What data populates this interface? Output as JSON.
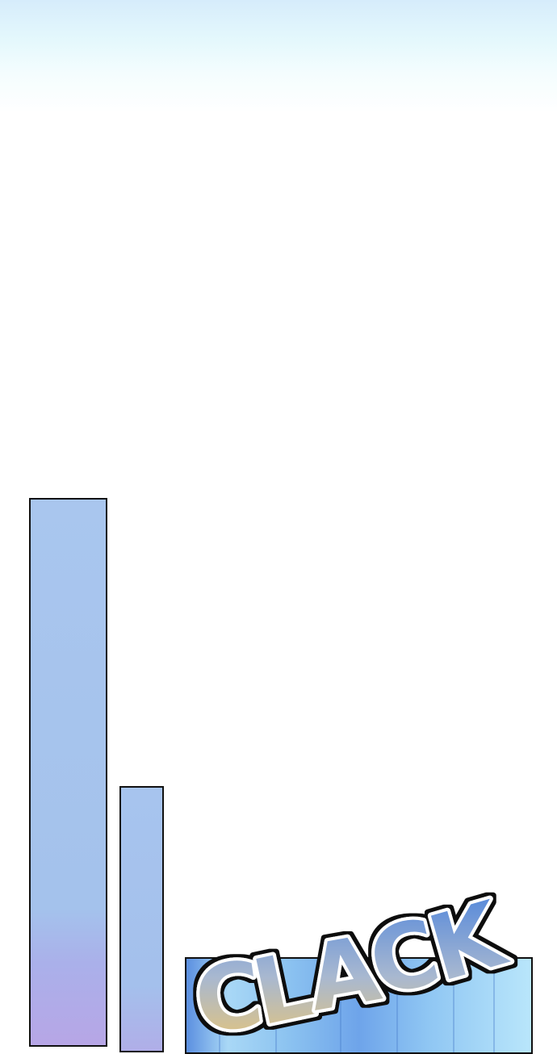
{
  "sound_effect": {
    "text": "CLACK",
    "letters": [
      "C",
      "L",
      "A",
      "C",
      "K"
    ]
  },
  "colors": {
    "sky_top": "#d6ecfb",
    "panel_blue": "#a6c4ee",
    "sfx_top": "#4a82dc",
    "sfx_bottom": "#e8c878",
    "outline": "#111111"
  }
}
